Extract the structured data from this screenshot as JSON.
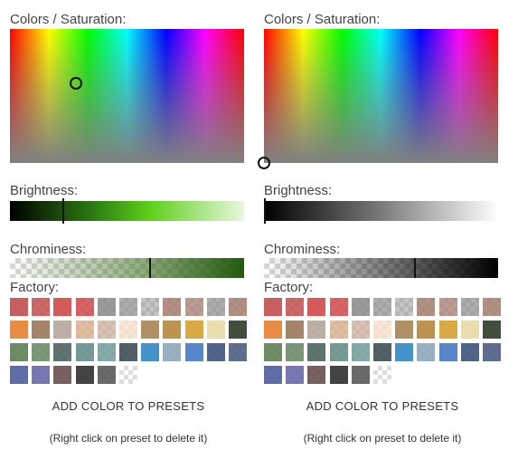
{
  "labels": {
    "saturation": "Colors / Saturation:",
    "brightness": "Brightness:",
    "chrominess": "Chrominess:",
    "factory": "Factory:",
    "add_button": "ADD COLOR TO PRESETS",
    "hint": "(Right click on preset to delete it)"
  },
  "pickers": [
    {
      "id": "left",
      "selected_color": "#5a9a2a",
      "hue": 0.28,
      "saturation": 0.61,
      "brightness": 0.23,
      "chrominess": 0.6
    },
    {
      "id": "right",
      "selected_color": "#000000",
      "hue": 0.0,
      "saturation": 0.0,
      "brightness": 0.0,
      "chrominess": 0.6
    }
  ],
  "presets": [
    {
      "color": "#c44f4f",
      "alpha": 0.9
    },
    {
      "color": "#c44f4f",
      "alpha": 0.85
    },
    {
      "color": "#d14a4a",
      "alpha": 0.9
    },
    {
      "color": "#d14a4a",
      "alpha": 0.85
    },
    {
      "color": "#8a8a8a",
      "alpha": 0.85
    },
    {
      "color": "#8a8a8a",
      "alpha": 0.7
    },
    {
      "color": "#8a8a8a",
      "alpha": 0.5
    },
    {
      "color": "#a67c6f",
      "alpha": 0.85
    },
    {
      "color": "#a67c6f",
      "alpha": 0.75
    },
    {
      "color": "#8a8a8a",
      "alpha": 0.7
    },
    {
      "color": "#a67c6f",
      "alpha": 0.85
    },
    {
      "color": "#e8873a",
      "alpha": 0.95
    },
    {
      "color": "#9a7a5a",
      "alpha": 0.9
    },
    {
      "color": "#b8a79c",
      "alpha": 0.9
    },
    {
      "color": "#d9ae8a",
      "alpha": 0.8
    },
    {
      "color": "#c9aa96",
      "alpha": 0.7
    },
    {
      "color": "#f7e0cc",
      "alpha": 0.8
    },
    {
      "color": "#ad8a5e",
      "alpha": 0.95
    },
    {
      "color": "#b88e46",
      "alpha": 0.95
    },
    {
      "color": "#d8a73a",
      "alpha": 0.95
    },
    {
      "color": "#e7dcaa",
      "alpha": 0.95
    },
    {
      "color": "#3a4534",
      "alpha": 0.95
    },
    {
      "color": "#5f7f55",
      "alpha": 0.9
    },
    {
      "color": "#6f8c6a",
      "alpha": 0.9
    },
    {
      "color": "#4f6660",
      "alpha": 0.9
    },
    {
      "color": "#5f8b86",
      "alpha": 0.85
    },
    {
      "color": "#6f9e9b",
      "alpha": 0.85
    },
    {
      "color": "#3f5058",
      "alpha": 0.9
    },
    {
      "color": "#3a8ec8",
      "alpha": 0.95
    },
    {
      "color": "#8ea8bd",
      "alpha": 0.9
    },
    {
      "color": "#4f7fc8",
      "alpha": 0.95
    },
    {
      "color": "#3f5580",
      "alpha": 0.9
    },
    {
      "color": "#4f5f85",
      "alpha": 0.9
    },
    {
      "color": "#4f5f9e",
      "alpha": 0.9
    },
    {
      "color": "#6a6aaa",
      "alpha": 0.9
    },
    {
      "color": "#6a5050",
      "alpha": 0.9
    },
    {
      "color": "#3a3a3a",
      "alpha": 0.95
    },
    {
      "color": "#5a5a5a",
      "alpha": 0.9
    },
    {
      "color": "#ffffff",
      "alpha": 0.0
    }
  ]
}
